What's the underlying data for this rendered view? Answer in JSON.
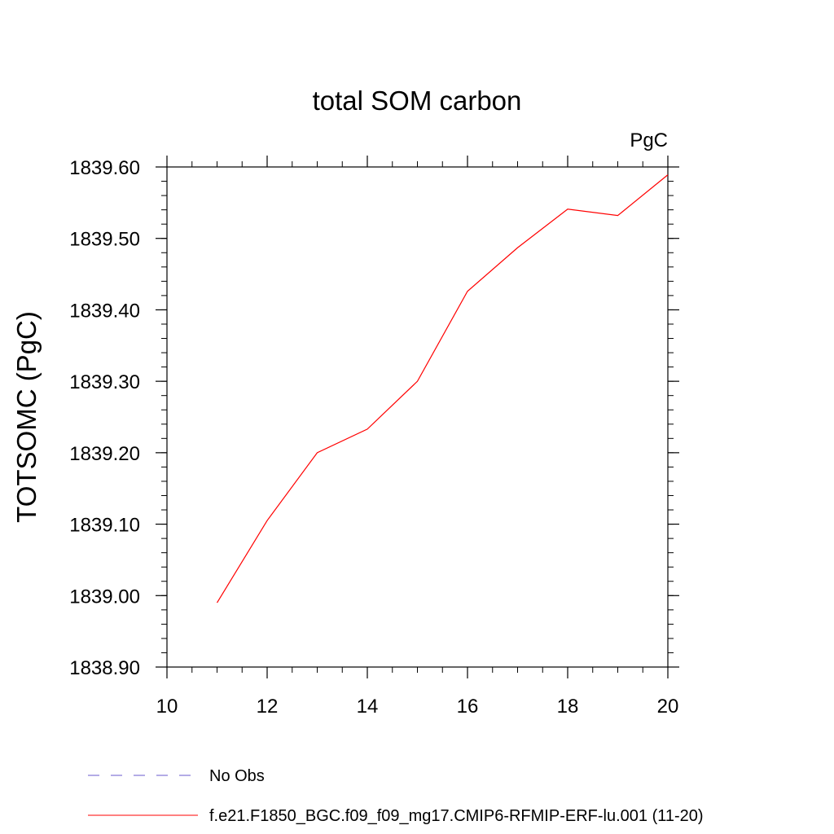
{
  "chart_data": {
    "type": "line",
    "title": "total SOM carbon",
    "units_label": "PgC",
    "ylabel": "TOTSOMC  (PgC)",
    "xlabel": "",
    "xlim": [
      10,
      20
    ],
    "ylim": [
      1838.9,
      1839.6
    ],
    "x_ticks": [
      10,
      12,
      14,
      16,
      18,
      20
    ],
    "y_ticks": [
      1838.9,
      1839.0,
      1839.1,
      1839.2,
      1839.3,
      1839.4,
      1839.5,
      1839.6
    ],
    "y_tick_labels": [
      "1838.90",
      "1839.00",
      "1839.10",
      "1839.20",
      "1839.30",
      "1839.40",
      "1839.50",
      "1839.60"
    ],
    "x_tick_labels": [
      "10",
      "12",
      "14",
      "16",
      "18",
      "20"
    ],
    "grid": false,
    "legend_position": "bottom",
    "series": [
      {
        "name": "f.e21.F1850_BGC.f09_f09_mg17.CMIP6-RFMIP-ERF-lu.001 (11-20)",
        "color": "#ff0000",
        "style": "solid",
        "x": [
          11,
          12,
          13,
          14,
          15,
          16,
          17,
          18,
          19,
          20
        ],
        "values": [
          1838.99,
          1839.105,
          1839.2,
          1839.233,
          1839.3,
          1839.426,
          1839.487,
          1839.541,
          1839.532,
          1839.589
        ]
      }
    ],
    "legend": [
      {
        "label": "No Obs",
        "color": "#6a5acd",
        "style": "dashed"
      },
      {
        "label": "f.e21.F1850_BGC.f09_f09_mg17.CMIP6-RFMIP-ERF-lu.001 (11-20)",
        "color": "#ff0000",
        "style": "solid"
      }
    ]
  }
}
